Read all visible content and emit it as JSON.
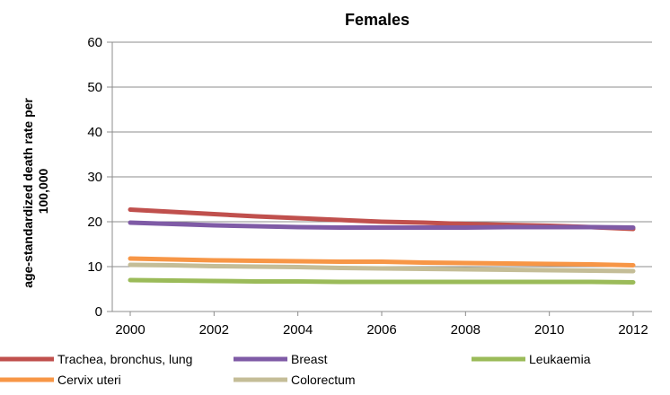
{
  "chart_data": {
    "type": "line",
    "title": "Females",
    "xlabel": "",
    "ylabel": "age-standardized death rate per 100,000",
    "ylabel_lines": [
      "age-standardized death rate per",
      "100,000"
    ],
    "x": [
      2000,
      2001,
      2002,
      2003,
      2004,
      2005,
      2006,
      2007,
      2008,
      2009,
      2010,
      2011,
      2012
    ],
    "xticks": [
      "2000",
      "2002",
      "2004",
      "2006",
      "2008",
      "2010",
      "2012"
    ],
    "xlim": [
      2000,
      2012
    ],
    "ylim": [
      0,
      60
    ],
    "yticks": [
      "0",
      "10",
      "20",
      "30",
      "40",
      "50",
      "60"
    ],
    "grid": true,
    "legend_position": "bottom",
    "series": [
      {
        "name": "Trachea, bronchus, lung",
        "color": "#c0504d",
        "values": [
          22.7,
          22.2,
          21.7,
          21.2,
          20.8,
          20.4,
          20.0,
          19.8,
          19.5,
          19.3,
          19.1,
          18.8,
          18.4
        ]
      },
      {
        "name": "Breast",
        "color": "#7f5ba6",
        "values": [
          19.8,
          19.5,
          19.2,
          19.0,
          18.8,
          18.7,
          18.7,
          18.7,
          18.7,
          18.8,
          18.8,
          18.8,
          18.7
        ]
      },
      {
        "name": "Leukaemia",
        "color": "#9bbb59",
        "values": [
          7.0,
          6.9,
          6.8,
          6.7,
          6.7,
          6.6,
          6.6,
          6.6,
          6.6,
          6.6,
          6.6,
          6.6,
          6.5
        ]
      },
      {
        "name": "Cervix uteri",
        "color": "#f79646",
        "values": [
          11.8,
          11.6,
          11.4,
          11.3,
          11.2,
          11.1,
          11.1,
          10.9,
          10.8,
          10.7,
          10.6,
          10.5,
          10.3
        ]
      },
      {
        "name": "Colorectum",
        "color": "#c4bd97",
        "values": [
          10.4,
          10.3,
          10.1,
          10.0,
          9.9,
          9.7,
          9.6,
          9.5,
          9.4,
          9.3,
          9.2,
          9.1,
          9.0
        ]
      }
    ]
  }
}
